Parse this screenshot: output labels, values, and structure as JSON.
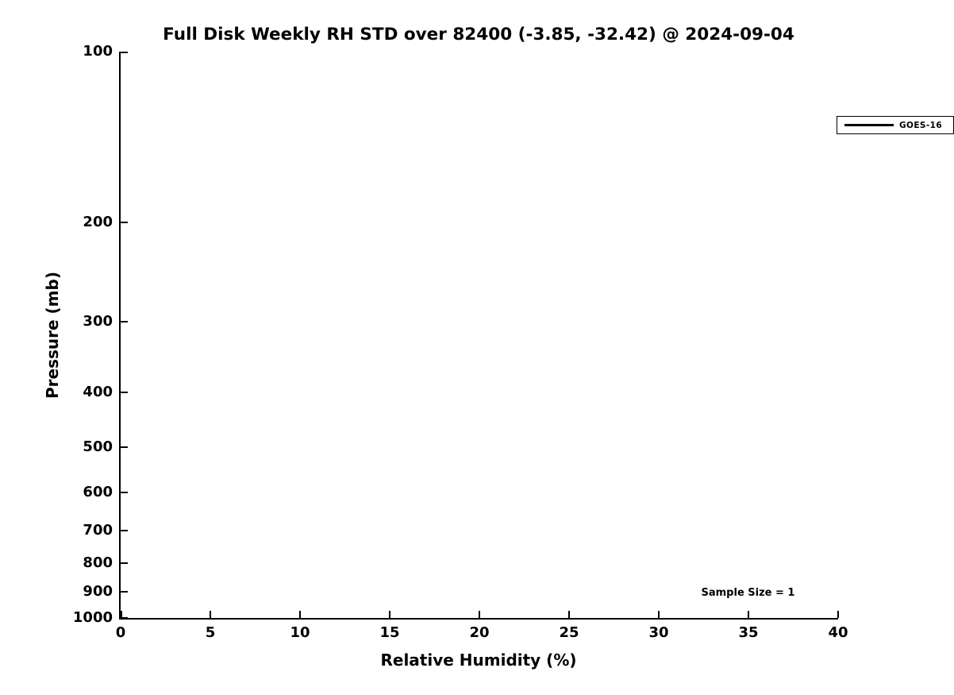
{
  "chart_data": {
    "type": "line",
    "title": "Full Disk Weekly RH STD over 82400 (-3.85, -32.42) @ 2024-09-04",
    "xlabel": "Relative Humidity (%)",
    "ylabel": "Pressure (mb)",
    "xlim": [
      0,
      40
    ],
    "ylim": [
      1000,
      100
    ],
    "y_scale": "log",
    "y_axis_inverted": true,
    "grid": false,
    "x_ticks": [
      0,
      5,
      10,
      15,
      20,
      25,
      30,
      35,
      40
    ],
    "y_ticks": [
      100,
      200,
      300,
      400,
      500,
      600,
      700,
      800,
      900,
      1000
    ],
    "legend": {
      "position": "top-right",
      "entries": [
        {
          "label": "GOES-16",
          "color": "#000000",
          "style": "solid-line"
        }
      ]
    },
    "series": [
      {
        "name": "GOES-16",
        "x": [],
        "y": [],
        "visible_points": 0
      }
    ],
    "annotations": [
      {
        "text": "Sample Size = 1",
        "location": "bottom-right-inside-plot"
      }
    ],
    "colors": {
      "axes": "#000000",
      "text": "#000000",
      "background": "#ffffff"
    }
  }
}
